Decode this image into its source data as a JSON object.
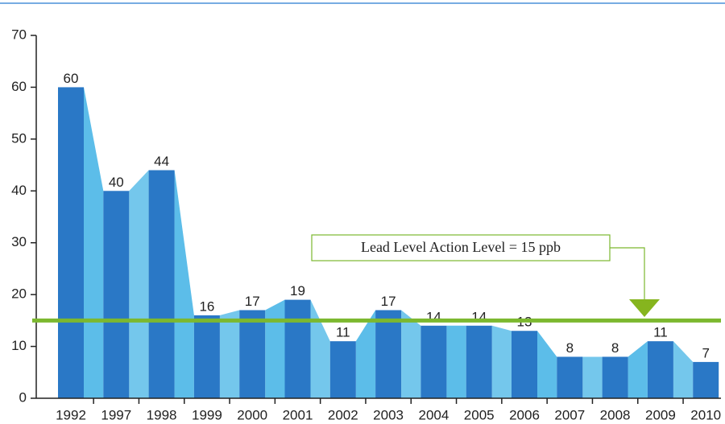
{
  "chart_data": {
    "type": "bar",
    "categories": [
      "1992",
      "1997",
      "1998",
      "1999",
      "2000",
      "2001",
      "2002",
      "2003",
      "2004",
      "2005",
      "2006",
      "2007",
      "2008",
      "2009",
      "2010"
    ],
    "values": [
      60,
      40,
      44,
      16,
      17,
      19,
      11,
      17,
      14,
      14,
      13,
      8,
      8,
      11,
      7
    ],
    "color": "#2a78c6",
    "fill_color": "#5cbde9",
    "ylim": [
      0,
      70
    ],
    "yticks": [
      0,
      10,
      20,
      30,
      40,
      50,
      60,
      70
    ],
    "action_level": 15,
    "action_color": "#7cb82f",
    "annotation": "Lead Level Action Level = 15 ppb"
  }
}
